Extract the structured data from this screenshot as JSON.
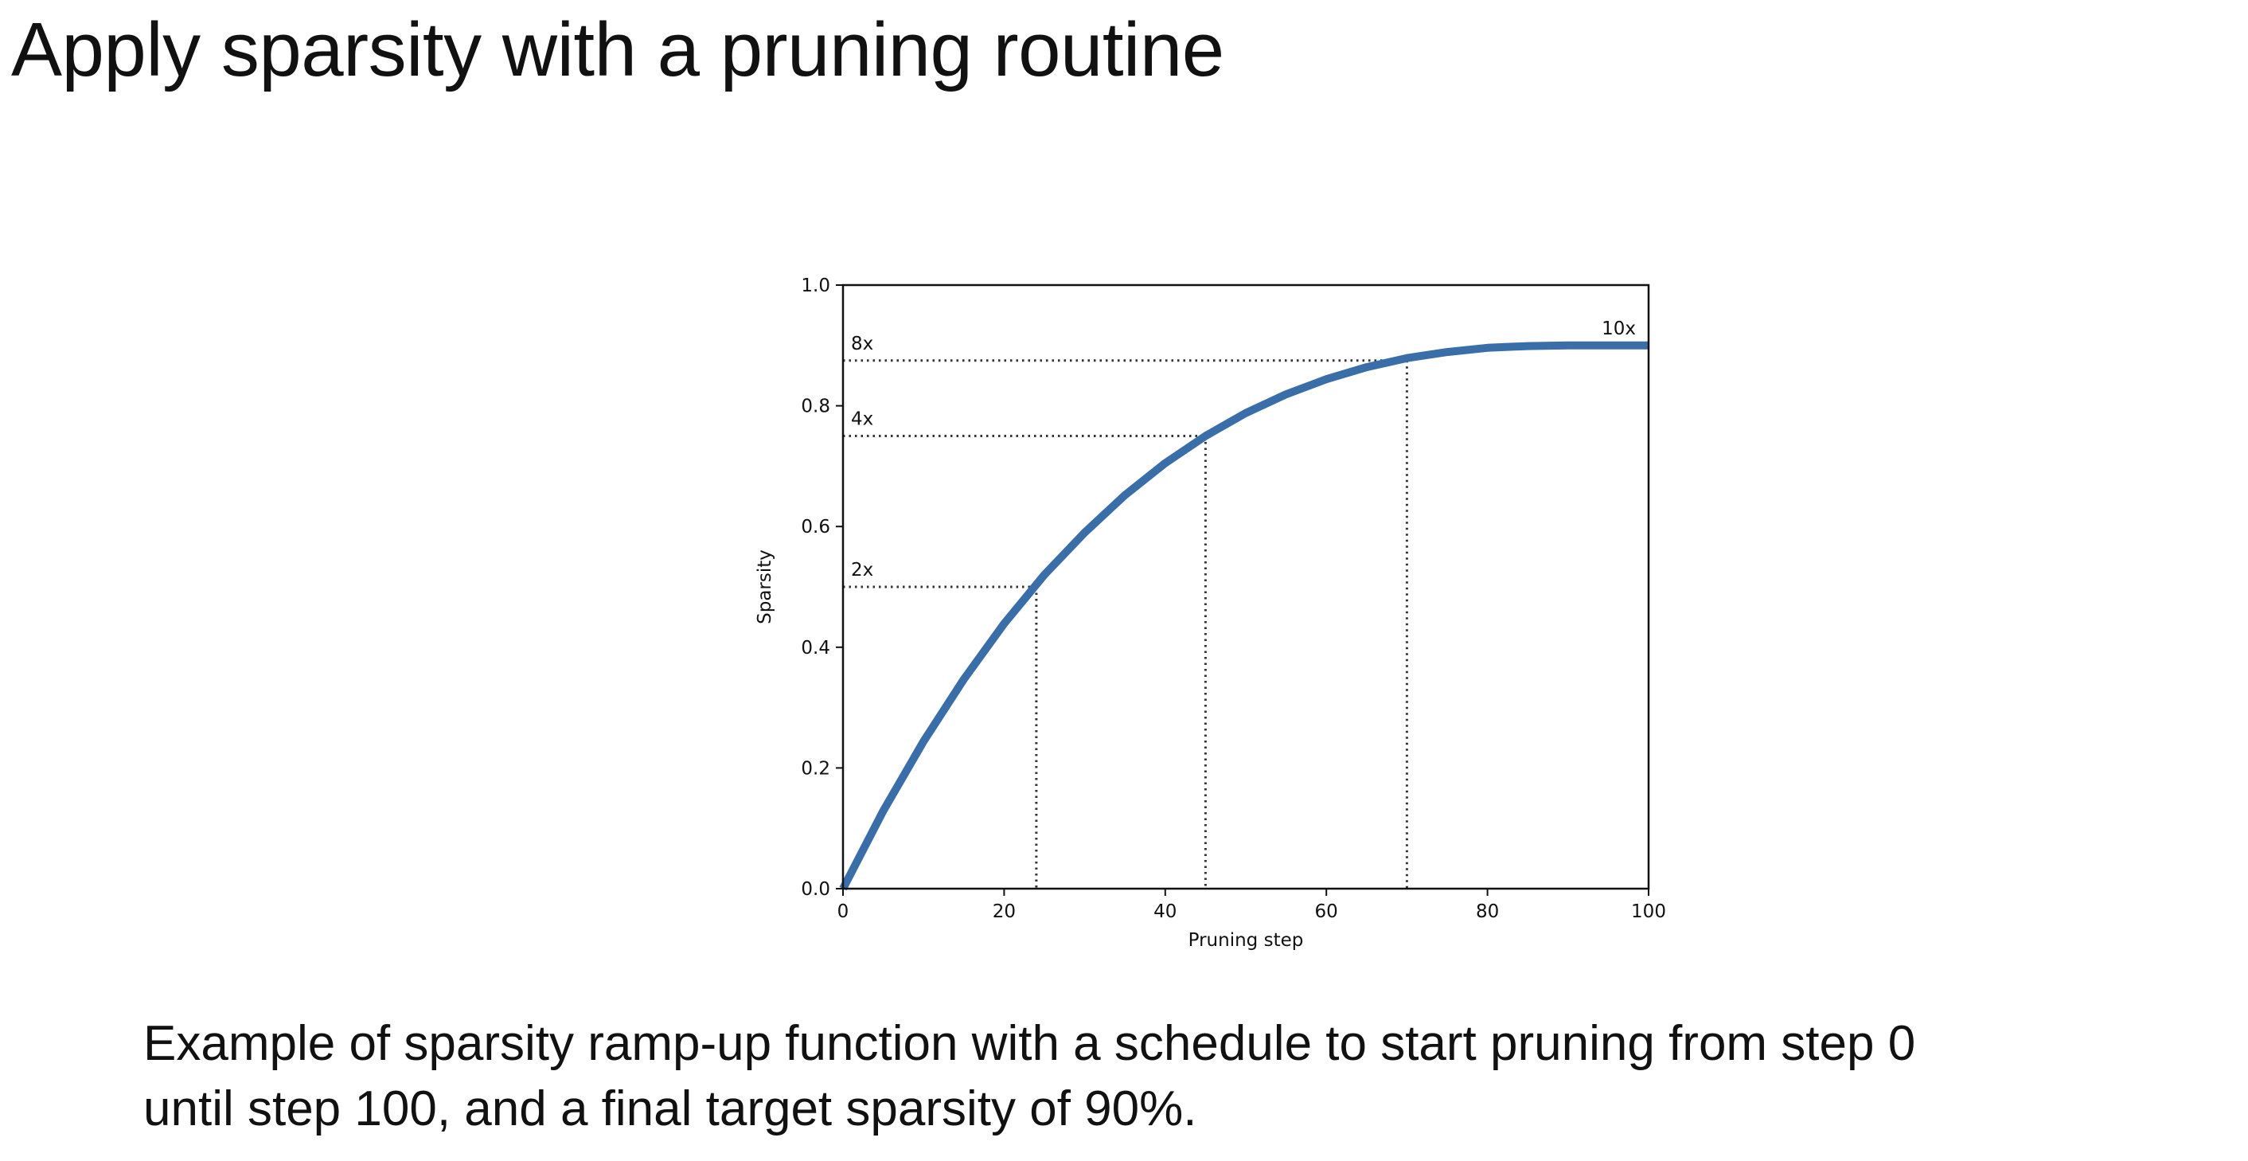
{
  "slide": {
    "title": "Apply sparsity with a pruning routine",
    "caption": {
      "line1": "Example of sparsity ramp-up function with a schedule to start pruning from step 0",
      "line2": "until step 100, and a final target sparsity of 90%."
    }
  },
  "colors": {
    "series": "#3a6ea8",
    "reference_lines": "#333333",
    "axes": "#111111"
  },
  "chart_data": {
    "type": "line",
    "title": "",
    "xlabel": "Pruning step",
    "ylabel": "Sparsity",
    "xlim": [
      0,
      100
    ],
    "ylim": [
      0.0,
      1.0
    ],
    "x_ticks": [
      0,
      20,
      40,
      60,
      80,
      100
    ],
    "x_tick_labels": [
      "0",
      "20",
      "40",
      "60",
      "80",
      "100"
    ],
    "y_ticks": [
      0.0,
      0.2,
      0.4,
      0.6,
      0.8,
      1.0
    ],
    "y_tick_labels": [
      "0.0",
      "0.2",
      "0.4",
      "0.6",
      "0.8",
      "1.0"
    ],
    "grid": false,
    "series": [
      {
        "x": [
          0,
          5,
          10,
          15,
          20,
          25,
          30,
          35,
          40,
          45,
          50,
          55,
          60,
          65,
          70,
          75,
          80,
          85,
          90,
          95,
          100
        ],
        "y": [
          0.0,
          0.129,
          0.244,
          0.347,
          0.439,
          0.52,
          0.59,
          0.652,
          0.705,
          0.75,
          0.788,
          0.819,
          0.844,
          0.864,
          0.879,
          0.889,
          0.896,
          0.899,
          0.9,
          0.9,
          0.9
        ]
      }
    ],
    "annotations": [
      {
        "label": "2x",
        "x": 24,
        "y": 0.5
      },
      {
        "label": "4x",
        "x": 45,
        "y": 0.75
      },
      {
        "label": "8x",
        "x": 70,
        "y": 0.875
      },
      {
        "label": "10x",
        "x": 100,
        "y": 0.9
      }
    ]
  }
}
